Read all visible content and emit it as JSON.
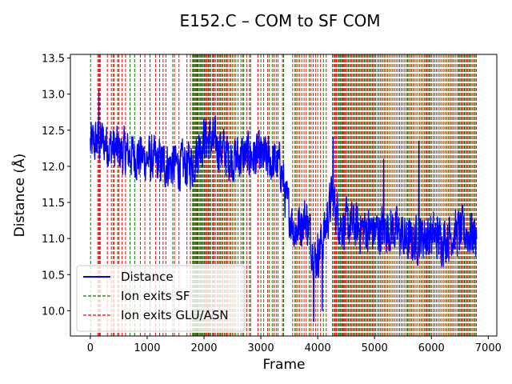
{
  "chart_data": {
    "type": "line",
    "title": "E152.C – COM to SF COM",
    "xlabel": "Frame",
    "ylabel": "Distance (Å)",
    "xlim": [
      -350,
      7150
    ],
    "ylim": [
      9.65,
      13.55
    ],
    "xticks": [
      0,
      1000,
      2000,
      3000,
      4000,
      5000,
      6000,
      7000
    ],
    "yticks": [
      10.0,
      10.5,
      11.0,
      11.5,
      12.0,
      12.5,
      13.0,
      13.5
    ],
    "xtick_labels": [
      "0",
      "1000",
      "2000",
      "3000",
      "4000",
      "5000",
      "6000",
      "7000"
    ],
    "ytick_labels": [
      "10.0",
      "10.5",
      "11.0",
      "11.5",
      "12.0",
      "12.5",
      "13.0",
      "13.5"
    ],
    "grid": false,
    "legend_position": "lower-left",
    "legend": [
      {
        "label": "Distance",
        "style": "solid",
        "color": "#0000ff"
      },
      {
        "label": "Ion exits SF",
        "style": "dashed",
        "color": "#008000"
      },
      {
        "label": "Ion exits GLU/ASN",
        "style": "dashed",
        "color": "#ff0000"
      }
    ],
    "distance_series": {
      "name": "Distance",
      "color": "#0000ff",
      "x_start": 0,
      "x_end": 6800,
      "trend": [
        [
          0,
          12.3
        ],
        [
          200,
          12.35
        ],
        [
          500,
          12.2
        ],
        [
          800,
          12.15
        ],
        [
          1200,
          12.05
        ],
        [
          1600,
          12.0
        ],
        [
          1800,
          12.05
        ],
        [
          2000,
          12.4
        ],
        [
          2200,
          12.3
        ],
        [
          2500,
          12.1
        ],
        [
          2800,
          12.15
        ],
        [
          3100,
          12.1
        ],
        [
          3350,
          12.0
        ],
        [
          3450,
          11.5
        ],
        [
          3600,
          11.1
        ],
        [
          3800,
          11.3
        ],
        [
          3950,
          10.7
        ],
        [
          4100,
          11.0
        ],
        [
          4250,
          11.6
        ],
        [
          4400,
          11.2
        ],
        [
          4700,
          11.15
        ],
        [
          5000,
          11.1
        ],
        [
          5300,
          11.15
        ],
        [
          5600,
          10.95
        ],
        [
          5900,
          11.05
        ],
        [
          6200,
          11.0
        ],
        [
          6500,
          11.1
        ],
        [
          6800,
          11.05
        ]
      ],
      "amplitude": 0.28,
      "peak_max": [
        150,
        13.05
      ],
      "trough_min": [
        3930,
        9.85
      ]
    },
    "ion_exits_sf": {
      "color": "#008000",
      "frames": [
        5,
        150,
        175,
        400,
        480,
        700,
        780,
        1220,
        1450,
        1800,
        1820,
        1850,
        1880,
        1900,
        1940,
        1960,
        2000,
        2030,
        2070,
        2100,
        2150,
        2180,
        2230,
        2270,
        2310,
        2360,
        2400,
        2450,
        2500,
        2560,
        2650,
        2700,
        2800,
        3000,
        3150,
        3200,
        3270,
        3400,
        3600,
        3650,
        3720,
        3850,
        3920,
        4000,
        4100,
        4280,
        4310,
        4350,
        4390,
        4420,
        4450,
        4480,
        4520,
        4560,
        4600,
        4640,
        4680,
        4720,
        4760,
        4800,
        4840,
        4880,
        4920,
        4960,
        5000,
        5050,
        5100,
        5150,
        5200,
        5260,
        5320,
        5380,
        5440,
        5500,
        5560,
        5600,
        5650,
        5700,
        5760,
        5820,
        5880,
        5920,
        5960,
        6000,
        6060,
        6120,
        6180,
        6240,
        6300,
        6350,
        6400,
        6460,
        6500,
        6540,
        6580,
        6620,
        6660,
        6700,
        6750,
        6790
      ]
    },
    "ion_exits_glu_asn": {
      "color": "#ff0000",
      "frames": [
        130,
        165,
        300,
        370,
        420,
        500,
        560,
        620,
        880,
        960,
        1050,
        1150,
        1280,
        1330,
        1480,
        1560,
        1700,
        1760,
        1810,
        1835,
        1865,
        1890,
        1920,
        1950,
        1980,
        2015,
        2050,
        2085,
        2120,
        2165,
        2200,
        2250,
        2290,
        2330,
        2380,
        2420,
        2470,
        2530,
        2600,
        2680,
        2750,
        2820,
        2950,
        3050,
        3120,
        3230,
        3300,
        3380,
        3560,
        3620,
        3680,
        3760,
        3800,
        3880,
        3960,
        4050,
        4150,
        4260,
        4300,
        4330,
        4370,
        4400,
        4435,
        4465,
        4500,
        4540,
        4580,
        4620,
        4660,
        4700,
        4740,
        4780,
        4820,
        4860,
        4900,
        4940,
        4980,
        5020,
        5075,
        5125,
        5175,
        5230,
        5290,
        5350,
        5410,
        5470,
        5530,
        5580,
        5625,
        5675,
        5730,
        5790,
        5850,
        5900,
        5940,
        5980,
        6030,
        6090,
        6150,
        6210,
        6270,
        6325,
        6375,
        6430,
        6480,
        6520,
        6560,
        6600,
        6640,
        6680,
        6725,
        6770
      ]
    }
  }
}
